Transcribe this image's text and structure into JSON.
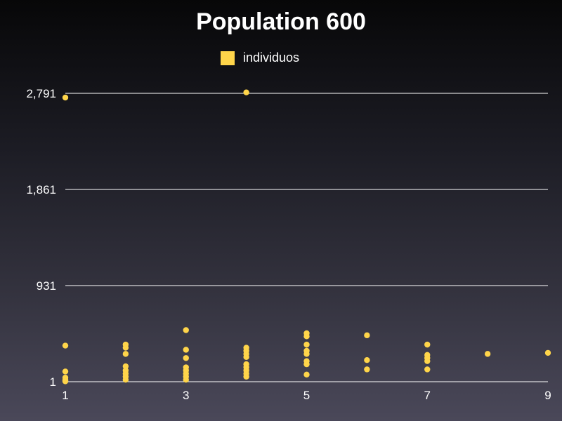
{
  "chart_data": {
    "type": "scatter",
    "title": "Population 600",
    "xlabel": "",
    "ylabel": "",
    "xlim": [
      1,
      9
    ],
    "ylim": [
      1,
      2791
    ],
    "x_ticks": [
      "1",
      "3",
      "5",
      "7",
      "9"
    ],
    "y_ticks": [
      "1",
      "931",
      "1,861",
      "2,791"
    ],
    "grid": "horizontal",
    "legend_position": "top",
    "colors": {
      "points": "#ffd54a",
      "grid": "#ffffff",
      "text": "#ffffff"
    },
    "series": [
      {
        "name": "individuos",
        "points": [
          [
            1,
            2750
          ],
          [
            1,
            350
          ],
          [
            1,
            100
          ],
          [
            1,
            40
          ],
          [
            1,
            20
          ],
          [
            1,
            10
          ],
          [
            1,
            5
          ],
          [
            2,
            360
          ],
          [
            2,
            330
          ],
          [
            2,
            270
          ],
          [
            2,
            150
          ],
          [
            2,
            110
          ],
          [
            2,
            80
          ],
          [
            2,
            50
          ],
          [
            2,
            20
          ],
          [
            3,
            500
          ],
          [
            3,
            310
          ],
          [
            3,
            230
          ],
          [
            3,
            140
          ],
          [
            3,
            110
          ],
          [
            3,
            80
          ],
          [
            3,
            50
          ],
          [
            3,
            20
          ],
          [
            4,
            2800
          ],
          [
            4,
            330
          ],
          [
            4,
            300
          ],
          [
            4,
            270
          ],
          [
            4,
            240
          ],
          [
            4,
            170
          ],
          [
            4,
            140
          ],
          [
            4,
            110
          ],
          [
            4,
            80
          ],
          [
            4,
            50
          ],
          [
            5,
            470
          ],
          [
            5,
            440
          ],
          [
            5,
            360
          ],
          [
            5,
            300
          ],
          [
            5,
            270
          ],
          [
            5,
            200
          ],
          [
            5,
            170
          ],
          [
            5,
            70
          ],
          [
            6,
            450
          ],
          [
            6,
            210
          ],
          [
            6,
            120
          ],
          [
            7,
            360
          ],
          [
            7,
            260
          ],
          [
            7,
            230
          ],
          [
            7,
            200
          ],
          [
            7,
            120
          ],
          [
            8,
            270
          ],
          [
            9,
            280
          ]
        ]
      }
    ]
  }
}
